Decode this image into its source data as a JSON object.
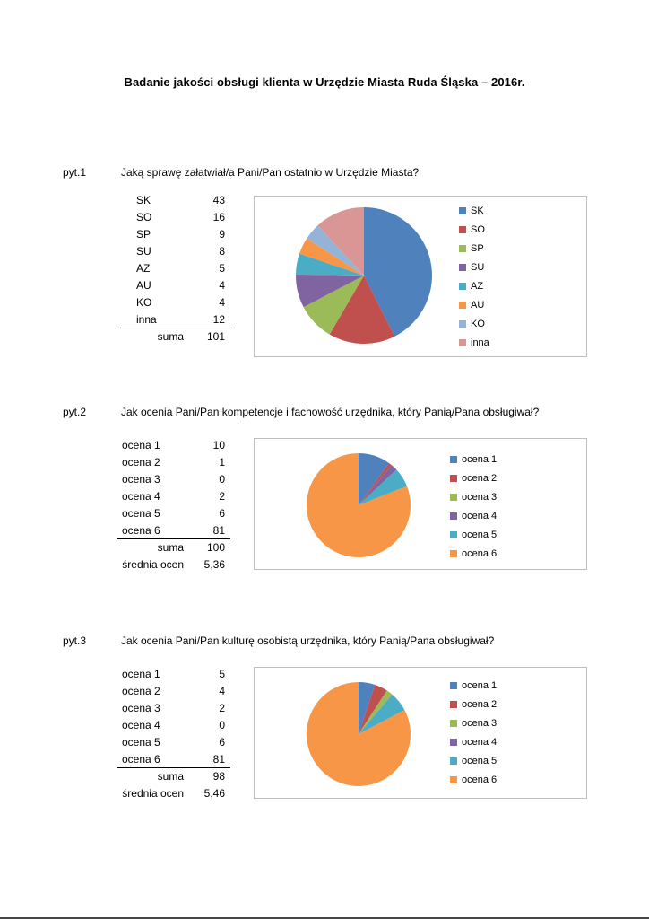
{
  "page": {
    "title": "Badanie jakości obsługi klienta w Urzędzie Miasta Ruda Śląska – 2016r."
  },
  "palette": [
    "#4F81BD",
    "#C0504D",
    "#9BBB59",
    "#8064A2",
    "#4BACC6",
    "#F79646",
    "#95B3D7",
    "#D99694"
  ],
  "sections": [
    {
      "label": "pyt.1",
      "question": "Jaką sprawę załatwiał/a Pani/Pan ostatnio w Urzędzie Miasta?",
      "rows": [
        [
          "SK",
          "43"
        ],
        [
          "SO",
          "16"
        ],
        [
          "SP",
          "9"
        ],
        [
          "SU",
          "8"
        ],
        [
          "AZ",
          "5"
        ],
        [
          "AU",
          "4"
        ],
        [
          "KO",
          "4"
        ],
        [
          "inna",
          "12"
        ]
      ],
      "footer": [
        [
          "suma",
          "101"
        ]
      ]
    },
    {
      "label": "pyt.2",
      "question": "Jak ocenia Pani/Pan kompetencje i fachowość urzędnika, który Panią/Pana obsługiwał?",
      "rows": [
        [
          "ocena 1",
          "10"
        ],
        [
          "ocena 2",
          "1"
        ],
        [
          "ocena 3",
          "0"
        ],
        [
          "ocena 4",
          "2"
        ],
        [
          "ocena 5",
          "6"
        ],
        [
          "ocena 6",
          "81"
        ]
      ],
      "footer": [
        [
          "suma",
          "100"
        ],
        [
          "średnia ocen",
          "5,36"
        ]
      ]
    },
    {
      "label": "pyt.3",
      "question": "Jak ocenia Pani/Pan kulturę osobistą urzędnika, który Panią/Pana obsługiwał?",
      "rows": [
        [
          "ocena 1",
          "5"
        ],
        [
          "ocena 2",
          "4"
        ],
        [
          "ocena 3",
          "2"
        ],
        [
          "ocena 4",
          "0"
        ],
        [
          "ocena 5",
          "6"
        ],
        [
          "ocena 6",
          "81"
        ]
      ],
      "footer": [
        [
          "suma",
          "98"
        ],
        [
          "średnia ocen",
          "5,46"
        ]
      ]
    }
  ],
  "chart_data": [
    {
      "type": "pie",
      "title": "pyt.1 – sprawa załatwiana w Urzędzie Miasta",
      "labels": [
        "SK",
        "SO",
        "SP",
        "SU",
        "AZ",
        "AU",
        "KO",
        "inna"
      ],
      "values": [
        43,
        16,
        9,
        8,
        5,
        4,
        4,
        12
      ],
      "total": 101,
      "colors": [
        "#4F81BD",
        "#C0504D",
        "#9BBB59",
        "#8064A2",
        "#4BACC6",
        "#F79646",
        "#95B3D7",
        "#D99694"
      ],
      "legend_position": "right"
    },
    {
      "type": "pie",
      "title": "pyt.2 – kompetencje i fachowość urzędnika",
      "labels": [
        "ocena 1",
        "ocena 2",
        "ocena 3",
        "ocena 4",
        "ocena 5",
        "ocena 6"
      ],
      "values": [
        10,
        1,
        0,
        2,
        6,
        81
      ],
      "total": 100,
      "colors": [
        "#4F81BD",
        "#C0504D",
        "#9BBB59",
        "#8064A2",
        "#4BACC6",
        "#F79646"
      ],
      "legend_position": "right"
    },
    {
      "type": "pie",
      "title": "pyt.3 – kultura osobista urzędnika",
      "labels": [
        "ocena 1",
        "ocena 2",
        "ocena 3",
        "ocena 4",
        "ocena 5",
        "ocena 6"
      ],
      "values": [
        5,
        4,
        2,
        0,
        6,
        81
      ],
      "total": 98,
      "colors": [
        "#4F81BD",
        "#C0504D",
        "#9BBB59",
        "#8064A2",
        "#4BACC6",
        "#F79646"
      ],
      "legend_position": "right"
    }
  ]
}
